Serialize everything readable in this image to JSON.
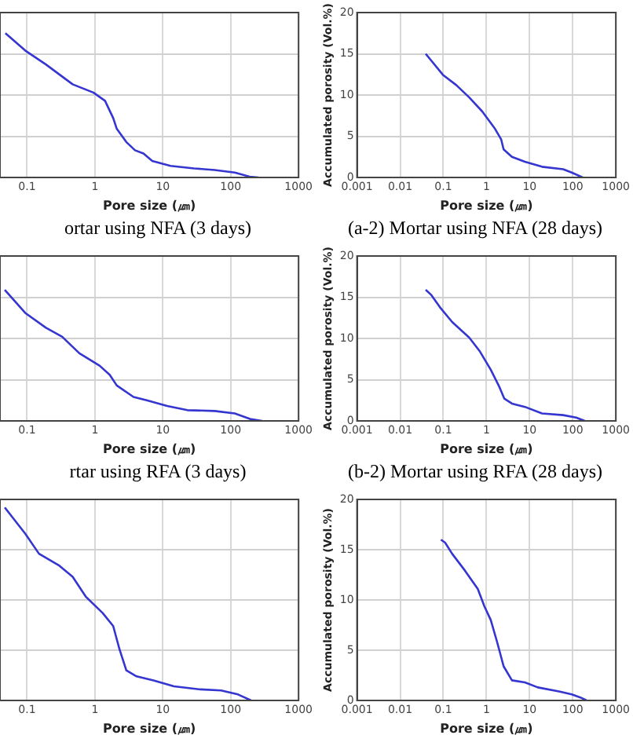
{
  "chart_data": [
    {
      "type": "line",
      "title": "ortar using NFA (3 days)",
      "xlabel": "Pore size (㎛)",
      "log": "x",
      "grid": true,
      "tick_labels": "x",
      "xlim": [
        0.04,
        1000
      ],
      "xticks": [
        0.1,
        1,
        10,
        100,
        1000
      ],
      "ylim": [
        0,
        20
      ],
      "yticks": [
        0,
        5,
        10,
        15,
        20
      ],
      "series": [
        {
          "color": "#3535d0",
          "x": [
            0.048,
            0.094,
            0.19,
            0.47,
            0.95,
            1.41,
            1.86,
            2.1,
            2.9,
            3.9,
            5.2,
            7.0,
            13,
            29,
            58,
            115,
            190,
            255
          ],
          "values": [
            17.5,
            15.4,
            13.7,
            11.3,
            10.3,
            9.3,
            7.2,
            5.9,
            4.3,
            3.3,
            2.9,
            2.0,
            1.4,
            1.1,
            0.9,
            0.6,
            0.1,
            0
          ]
        }
      ]
    },
    {
      "type": "line",
      "title": "(a-2) Mortar using NFA (28 days)",
      "xlabel": "Pore size (㎛)",
      "ylabel": "Accumulated porosity (Vol.%)",
      "log": "x",
      "grid": true,
      "xlim": [
        0.001,
        1000
      ],
      "xticks": [
        0.001,
        0.01,
        0.1,
        1,
        10,
        100,
        1000
      ],
      "ylim": [
        0,
        20
      ],
      "yticks": [
        0,
        5,
        10,
        15,
        20
      ],
      "series": [
        {
          "color": "#3535d0",
          "x": [
            0.039,
            0.1,
            0.2,
            0.4,
            0.8,
            1.58,
            2.2,
            2.5,
            3.9,
            7.8,
            19.4,
            60,
            95,
            170
          ],
          "values": [
            15.0,
            12.4,
            11.2,
            9.7,
            8.0,
            5.9,
            4.6,
            3.4,
            2.5,
            1.9,
            1.3,
            1.0,
            0.6,
            0
          ]
        }
      ]
    },
    {
      "type": "line",
      "title": "rtar using RFA (3 days)",
      "xlabel": "Pore size (㎛)",
      "log": "x",
      "grid": true,
      "tick_labels": "x",
      "xlim": [
        0.04,
        1000
      ],
      "xticks": [
        0.1,
        1,
        10,
        100,
        1000
      ],
      "ylim": [
        0,
        20
      ],
      "yticks": [
        0,
        5,
        10,
        15,
        20
      ],
      "series": [
        {
          "color": "#3535d0",
          "x": [
            0.047,
            0.094,
            0.19,
            0.33,
            0.59,
            1.17,
            1.65,
            2.1,
            3.7,
            5.8,
            11.6,
            23,
            58,
            115,
            200,
            290
          ],
          "values": [
            15.9,
            13.1,
            11.3,
            10.2,
            8.2,
            6.7,
            5.6,
            4.3,
            2.9,
            2.5,
            1.8,
            1.3,
            1.2,
            0.9,
            0.2,
            0
          ]
        }
      ]
    },
    {
      "type": "line",
      "title": "(b-2) Mortar using RFA (28 days)",
      "xlabel": "Pore size (㎛)",
      "ylabel": "Accumulated porosity (Vol.%)",
      "log": "x",
      "grid": true,
      "xlim": [
        0.001,
        1000
      ],
      "xticks": [
        0.001,
        0.01,
        0.1,
        1,
        10,
        100,
        1000
      ],
      "ylim": [
        0,
        20
      ],
      "yticks": [
        0,
        5,
        10,
        15,
        20
      ],
      "series": [
        {
          "color": "#3535d0",
          "x": [
            0.039,
            0.052,
            0.083,
            0.16,
            0.4,
            0.71,
            1.26,
            2.0,
            2.6,
            3.9,
            7.8,
            19.4,
            60,
            120,
            190
          ],
          "values": [
            15.9,
            15.3,
            13.8,
            12.0,
            10.1,
            8.4,
            6.2,
            4.1,
            2.7,
            2.1,
            1.7,
            0.9,
            0.7,
            0.4,
            0
          ]
        }
      ]
    },
    {
      "type": "line",
      "xlabel": "Pore size (㎛)",
      "log": "x",
      "grid": true,
      "tick_labels": "x",
      "xlim": [
        0.04,
        1000
      ],
      "xticks": [
        0.1,
        1,
        10,
        100,
        1000
      ],
      "ylim": [
        0,
        20
      ],
      "yticks": [
        0,
        5,
        10,
        15,
        20
      ],
      "series": [
        {
          "color": "#3535d0",
          "x": [
            0.047,
            0.094,
            0.15,
            0.3,
            0.47,
            0.74,
            1.3,
            1.86,
            2.3,
            2.9,
            4.1,
            7.3,
            14.6,
            36,
            72,
            128,
            200
          ],
          "values": [
            19.2,
            16.6,
            14.6,
            13.4,
            12.3,
            10.3,
            8.7,
            7.4,
            5.1,
            3.0,
            2.4,
            2.0,
            1.4,
            1.1,
            1.0,
            0.6,
            0
          ]
        }
      ]
    },
    {
      "type": "line",
      "xlabel": "Pore size (㎛)",
      "ylabel": "Accumulated porosity (Vol.%)",
      "log": "x",
      "grid": true,
      "xlim": [
        0.001,
        1000
      ],
      "xticks": [
        0.001,
        0.01,
        0.1,
        1,
        10,
        100,
        1000
      ],
      "ylim": [
        0,
        20
      ],
      "yticks": [
        0,
        5,
        10,
        15,
        20
      ],
      "series": [
        {
          "color": "#3535d0",
          "x": [
            0.088,
            0.11,
            0.16,
            0.32,
            0.63,
            0.89,
            1.26,
            1.77,
            2.5,
            3.9,
            7.8,
            15.5,
            48,
            95,
            150,
            210
          ],
          "values": [
            16.0,
            15.7,
            14.6,
            12.9,
            11.1,
            9.4,
            8.0,
            5.8,
            3.4,
            2.0,
            1.8,
            1.3,
            0.9,
            0.6,
            0.3,
            0
          ]
        }
      ]
    }
  ]
}
